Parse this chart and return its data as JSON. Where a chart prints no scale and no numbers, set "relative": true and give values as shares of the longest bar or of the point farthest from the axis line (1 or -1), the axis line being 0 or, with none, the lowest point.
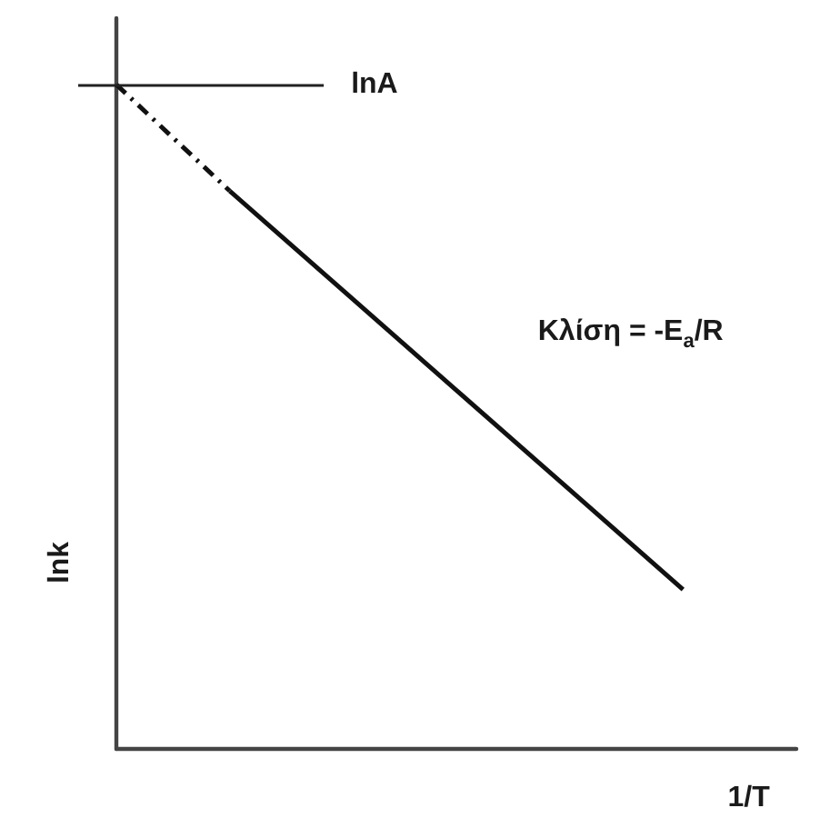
{
  "chart_data": {
    "type": "line",
    "xlabel": "1/T",
    "ylabel": "lnk",
    "relative": true,
    "categories": [
      null,
      null,
      null,
      null,
      null,
      null,
      null
    ],
    "series": [
      {
        "color": "#111111",
        "line_style": "dashed",
        "values": [
          1,
          0.84,
          null,
          null,
          null,
          null,
          null
        ]
      },
      {
        "color": "#111111",
        "line_style": "solid",
        "values": [
          null,
          0.84,
          0.69,
          0.54,
          0.39,
          0.24,
          null
        ]
      }
    ],
    "ref_lines": [
      {
        "axis": "y",
        "value": 1,
        "label": "lnA",
        "color": "#222222"
      }
    ],
    "annotations": [
      "Κλίση = -E$_{a}$/R"
    ],
    "marker": "none",
    "grid": false
  }
}
